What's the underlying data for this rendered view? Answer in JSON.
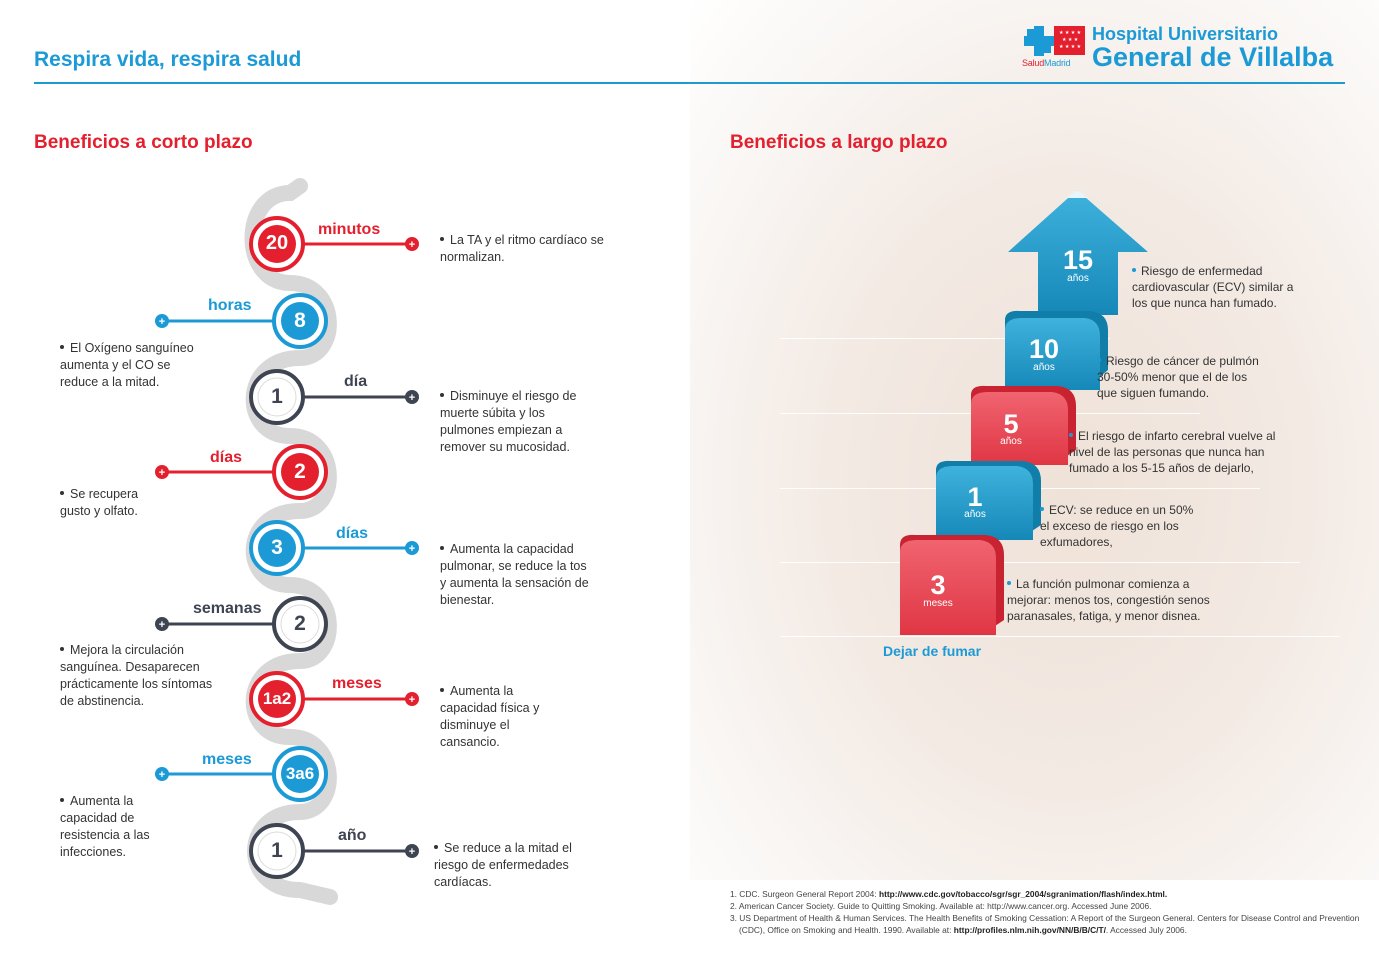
{
  "header": {
    "title": "Respira vida, respira salud",
    "logo": {
      "brand_salud": "Salud",
      "brand_madrid": "Madrid",
      "line1": "Hospital Universitario",
      "line2": "General de Villalba"
    }
  },
  "colors": {
    "blue": "#1b9ad6",
    "red": "#e4202e",
    "dark": "#3e4452",
    "track": "#d8d8d8"
  },
  "short_term": {
    "title": "Beneficios a corto plazo",
    "items": [
      {
        "number": "20",
        "unit": "minutos",
        "color": "red",
        "side": "right",
        "text": "La TA y el ritmo cardíaco se normalizan."
      },
      {
        "number": "8",
        "unit": "horas",
        "color": "blue",
        "side": "left",
        "text": "El Oxígeno sanguíneo aumenta y el CO se reduce a la mitad."
      },
      {
        "number": "1",
        "unit": "día",
        "color": "dark",
        "side": "right",
        "text": "Disminuye el riesgo de muerte súbita y los pulmones empiezan a remover su mucosidad."
      },
      {
        "number": "2",
        "unit": "días",
        "color": "red",
        "side": "left",
        "text": "Se recupera gusto y olfato."
      },
      {
        "number": "3",
        "unit": "días",
        "color": "blue",
        "side": "right",
        "text": "Aumenta la capacidad pulmonar, se reduce la tos y aumenta la sensación de bienestar."
      },
      {
        "number": "2",
        "unit": "semanas",
        "color": "dark",
        "side": "left",
        "text": "Mejora la circulación sanguínea. Desaparecen prácticamente los síntomas de abstinencia."
      },
      {
        "number": "1a2",
        "unit": "meses",
        "color": "red",
        "side": "right",
        "text": "Aumenta la capacidad física y disminuye el cansancio."
      },
      {
        "number": "3a6",
        "unit": "meses",
        "color": "blue",
        "side": "left",
        "text": "Aumenta la capacidad de resistencia a las infecciones."
      },
      {
        "number": "1",
        "unit": "año",
        "color": "dark",
        "side": "right",
        "text": "Se reduce a la mitad el riesgo de enfermedades cardíacas."
      }
    ]
  },
  "long_term": {
    "title": "Beneficios a largo plazo",
    "start_label": "Dejar de fumar",
    "steps": [
      {
        "number": "3",
        "unit": "meses",
        "color": "red",
        "text": "La función pulmonar comienza a mejorar: menos tos, congestión senos paranasales, fatiga, y menor disnea."
      },
      {
        "number": "1",
        "unit": "años",
        "color": "blue",
        "text": "ECV: se reduce en un 50% el exceso de riesgo en los exfumadores,"
      },
      {
        "number": "5",
        "unit": "años",
        "color": "red",
        "text": "El riesgo de infarto cerebral vuelve al nivel de las personas que nunca han fumado a los 5-15 años de dejarlo,"
      },
      {
        "number": "10",
        "unit": "años",
        "color": "blue",
        "text": "Riesgo de cáncer de pulmón 30-50% menor que el de los que siguen fumando."
      },
      {
        "number": "15",
        "unit": "años",
        "color": "blue",
        "text": "Riesgo de enfermedad cardiovascular (ECV) similar a los que nunca han fumado."
      }
    ]
  },
  "references": [
    {
      "text": "1. CDC. Surgeon General Report 2004: ",
      "link": "http://www.cdc.gov/tobacco/sgr/sgr_2004/sgranimation/flash/index.html."
    },
    {
      "text": "2. American Cancer Society. Guide to Quitting Smoking. Available at: http://www.cancer.org. Accessed June 2006.",
      "link": ""
    },
    {
      "text": "3. US Department of Health & Human Services. The Health Benefits of Smoking Cessation: A Report of the Surgeon General. Centers for Disease Control and Prevention (CDC), Office on Smoking and Health. 1990. Available at: ",
      "link": "http://profiles.nlm.nih.gov/NN/B/B/C/T/",
      "suffix": ". Accessed July 2006."
    }
  ]
}
